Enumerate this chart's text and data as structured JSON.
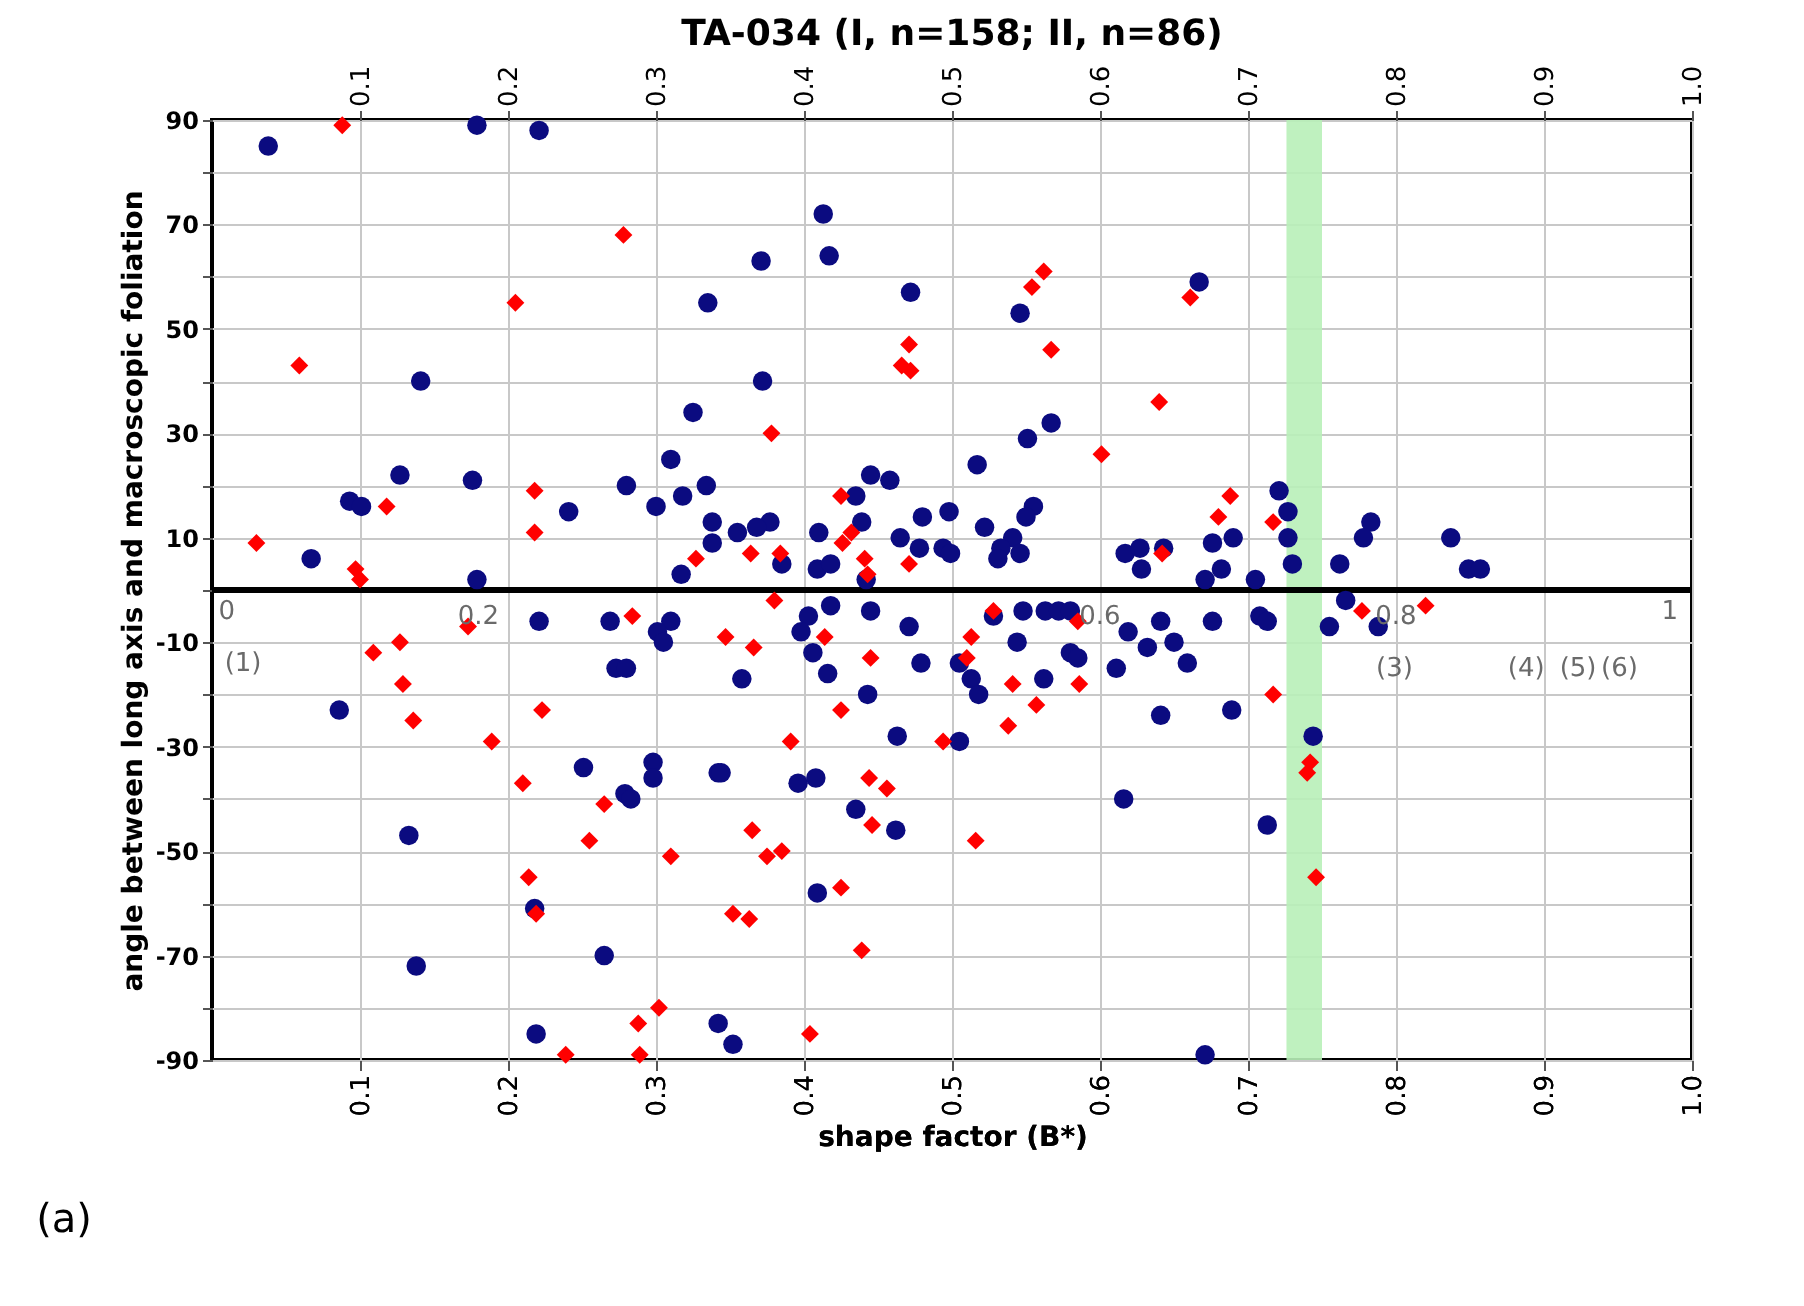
{
  "chart_data": {
    "type": "scatter",
    "title": "TA-034 (I, n=158; II, n=86)",
    "xlabel": "shape factor (B*)",
    "ylabel": "angle between long axis and macroscopic foliation",
    "xlim": [
      0,
      1
    ],
    "xticks": [
      0.1,
      0.2,
      0.3,
      0.4,
      0.5,
      0.6,
      0.7,
      0.8,
      0.9,
      {
        "value": 1,
        "label": "1.0"
      }
    ],
    "x2lim": [
      0,
      1
    ],
    "x2ticks": [
      0.1,
      0.2,
      0.3,
      0.4,
      0.5,
      0.6,
      0.7,
      0.8,
      0.9,
      {
        "value": 1,
        "label": "1.0"
      }
    ],
    "ylim": [
      -90,
      90
    ],
    "yticks": [
      90,
      {
        "value": 80,
        "label": null
      },
      70,
      {
        "value": 60,
        "label": null
      },
      50,
      {
        "value": 40,
        "label": null
      },
      30,
      {
        "value": 20,
        "label": null
      },
      10,
      {
        "value": 0,
        "label": null
      },
      -10,
      {
        "value": -20,
        "label": null
      },
      -30,
      {
        "value": -40,
        "label": null
      },
      -50,
      {
        "value": -60,
        "label": null
      },
      -70,
      {
        "value": -80,
        "label": null
      },
      -90
    ],
    "grid": true,
    "legend": false,
    "series": [
      {
        "color": "#0b0b80",
        "marker": "circle",
        "x": [
          0.038,
          0.179,
          0.221,
          0.335,
          0.141,
          0.325,
          0.31,
          0.127,
          0.176,
          0.28,
          0.093,
          0.101,
          0.241,
          0.3,
          0.318,
          0.334,
          0.067,
          0.179,
          0.317,
          0.338,
          0.338,
          0.413,
          0.417,
          0.371,
          0.472,
          0.546,
          0.372,
          0.567,
          0.551,
          0.517,
          0.445,
          0.458,
          0.435,
          0.555,
          0.439,
          0.48,
          0.498,
          0.55,
          0.377,
          0.368,
          0.355,
          0.41,
          0.465,
          0.478,
          0.522,
          0.541,
          0.533,
          0.494,
          0.499,
          0.531,
          0.546,
          0.385,
          0.409,
          0.418,
          0.442,
          0.617,
          0.627,
          0.628,
          0.643,
          0.667,
          0.721,
          0.727,
          0.727,
          0.73,
          0.69,
          0.676,
          0.682,
          0.671,
          0.705,
          0.783,
          0.778,
          0.762,
          0.837,
          0.849,
          0.857,
          0.221,
          0.269,
          0.31,
          0.301,
          0.305,
          0.273,
          0.28,
          0.086,
          0.251,
          0.298,
          0.298,
          0.279,
          0.283,
          0.342,
          0.133,
          0.218,
          0.138,
          0.265,
          0.219,
          0.342,
          0.403,
          0.398,
          0.418,
          0.445,
          0.471,
          0.406,
          0.416,
          0.358,
          0.443,
          0.479,
          0.505,
          0.513,
          0.518,
          0.528,
          0.548,
          0.563,
          0.572,
          0.58,
          0.544,
          0.562,
          0.58,
          0.585,
          0.611,
          0.619,
          0.641,
          0.632,
          0.65,
          0.659,
          0.641,
          0.463,
          0.505,
          0.344,
          0.396,
          0.408,
          0.435,
          0.462,
          0.409,
          0.616,
          0.352,
          0.766,
          0.788,
          0.676,
          0.708,
          0.713,
          0.755,
          0.689,
          0.744,
          0.713,
          0.671
        ],
        "values": [
          85,
          89,
          88,
          55,
          40,
          34,
          25,
          22,
          21,
          20,
          17,
          16,
          15,
          16,
          18,
          20,
          6,
          2,
          3,
          13,
          9,
          72,
          64,
          63,
          57,
          53,
          40,
          32,
          29,
          24,
          22,
          21,
          18,
          16,
          13,
          14,
          15,
          14,
          13,
          12,
          11,
          11,
          10,
          8,
          12,
          10,
          8,
          8,
          7,
          6,
          7,
          5,
          4,
          5,
          2,
          7,
          8,
          4,
          8,
          59,
          19,
          15,
          10,
          5,
          10,
          9,
          4,
          2,
          2,
          13,
          10,
          5,
          10,
          4,
          4,
          -6,
          -6,
          -6,
          -8,
          -10,
          -15,
          -15,
          -23,
          -34,
          -33,
          -36,
          -39,
          -40,
          -35,
          -47,
          -61,
          -72,
          -70,
          -85,
          -83,
          -5,
          -8,
          -3,
          -4,
          -7,
          -12,
          -16,
          -17,
          -20,
          -14,
          -14,
          -17,
          -20,
          -5,
          -4,
          -4,
          -4,
          -4,
          -10,
          -17,
          -12,
          -13,
          -15,
          -8,
          -6,
          -11,
          -10,
          -14,
          -24,
          -28,
          -29,
          -35,
          -37,
          -36,
          -42,
          -46,
          -58,
          -40,
          -87,
          -2,
          -7,
          -6,
          -5,
          -6,
          -7,
          -23,
          -28,
          -45,
          -89
        ]
      },
      {
        "color": "#ff0000",
        "marker": "diamond",
        "x": [
          0.088,
          0.278,
          0.205,
          0.059,
          0.118,
          0.218,
          0.218,
          0.03,
          0.097,
          0.1,
          0.327,
          0.562,
          0.554,
          0.661,
          0.471,
          0.466,
          0.472,
          0.567,
          0.64,
          0.378,
          0.601,
          0.425,
          0.432,
          0.426,
          0.364,
          0.384,
          0.441,
          0.471,
          0.642,
          0.443,
          0.688,
          0.68,
          0.717,
          0.173,
          0.284,
          0.127,
          0.109,
          0.129,
          0.136,
          0.223,
          0.189,
          0.21,
          0.265,
          0.255,
          0.31,
          0.214,
          0.219,
          0.302,
          0.288,
          0.239,
          0.289,
          0.38,
          0.347,
          0.366,
          0.414,
          0.445,
          0.425,
          0.391,
          0.528,
          0.513,
          0.51,
          0.541,
          0.557,
          0.538,
          0.585,
          0.586,
          0.494,
          0.444,
          0.456,
          0.446,
          0.365,
          0.375,
          0.385,
          0.516,
          0.425,
          0.352,
          0.363,
          0.439,
          0.404,
          0.777,
          0.82,
          0.717,
          0.742,
          0.74,
          0.746
        ],
        "values": [
          89,
          68,
          55,
          43,
          16,
          19,
          11,
          9,
          4,
          2,
          6,
          61,
          58,
          56,
          47,
          43,
          42,
          46,
          36,
          30,
          26,
          18,
          11,
          9,
          7,
          7,
          6,
          5,
          7,
          3,
          18,
          14,
          13,
          -7,
          -5,
          -10,
          -12,
          -18,
          -25,
          -23,
          -29,
          -37,
          -41,
          -48,
          -51,
          -55,
          -62,
          -80,
          -83,
          -89,
          -89,
          -2,
          -9,
          -11,
          -9,
          -13,
          -23,
          -29,
          -4,
          -9,
          -13,
          -18,
          -22,
          -26,
          -6,
          -18,
          -29,
          -36,
          -38,
          -45,
          -46,
          -51,
          -50,
          -48,
          -57,
          -62,
          -63,
          -69,
          -85,
          -4,
          -3,
          -20,
          -33,
          -35,
          -55
        ]
      }
    ],
    "ref_lines": [
      {
        "axis": "y",
        "value": 0,
        "color": "#000000"
      }
    ],
    "bands": [
      {
        "axis": "x",
        "from": 0.726,
        "to": 0.75,
        "color": "#b8f0b8"
      }
    ],
    "annotations": [
      "0",
      "0.2",
      "0.6",
      "0.8",
      "1",
      "(1)",
      "(3)",
      "(4)",
      "(5)",
      "(6)",
      "(a)"
    ]
  }
}
